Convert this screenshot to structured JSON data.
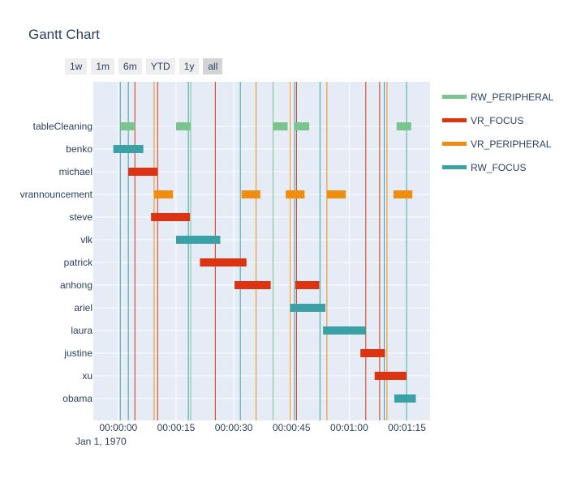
{
  "chart_data": {
    "type": "gantt",
    "title": "Gantt Chart",
    "x_date_label": "Jan 1, 1970",
    "xlim": [
      -6.5,
      81
    ],
    "x_ticks": [
      {
        "value": 0,
        "label": "00:00:00"
      },
      {
        "value": 15,
        "label": "00:00:15"
      },
      {
        "value": 30,
        "label": "00:00:30"
      },
      {
        "value": 45,
        "label": "00:00:45"
      },
      {
        "value": 60,
        "label": "00:01:00"
      },
      {
        "value": 75,
        "label": "00:01:15"
      }
    ],
    "range_buttons": [
      {
        "label": "1w",
        "active": false
      },
      {
        "label": "1m",
        "active": false
      },
      {
        "label": "6m",
        "active": false
      },
      {
        "label": "YTD",
        "active": false
      },
      {
        "label": "1y",
        "active": false
      },
      {
        "label": "all",
        "active": true
      }
    ],
    "categories": [
      "tableCleaning",
      "benko",
      "michael",
      "vrannouncement",
      "steve",
      "vlk",
      "patrick",
      "anhong",
      "ariel",
      "laura",
      "justine",
      "xu",
      "obama"
    ],
    "legend": [
      {
        "name": "RW_PERIPHERAL",
        "color": "#7ac48f"
      },
      {
        "name": "VR_FOCUS",
        "color": "#dd3311"
      },
      {
        "name": "VR_PERIPHERAL",
        "color": "#f08c0e"
      },
      {
        "name": "RW_FOCUS",
        "color": "#3aa1a6"
      }
    ],
    "tasks": [
      {
        "row": "tableCleaning",
        "start": 0.5,
        "end": 4.3,
        "type": "RW_PERIPHERAL"
      },
      {
        "row": "tableCleaning",
        "start": 15,
        "end": 18.8,
        "type": "RW_PERIPHERAL"
      },
      {
        "row": "tableCleaning",
        "start": 40.2,
        "end": 44,
        "type": "RW_PERIPHERAL"
      },
      {
        "row": "tableCleaning",
        "start": 45.8,
        "end": 49.6,
        "type": "RW_PERIPHERAL"
      },
      {
        "row": "tableCleaning",
        "start": 72.3,
        "end": 76.1,
        "type": "RW_PERIPHERAL"
      },
      {
        "row": "benko",
        "start": -1.3,
        "end": 6.5,
        "type": "RW_FOCUS"
      },
      {
        "row": "michael",
        "start": 2.6,
        "end": 10.2,
        "type": "VR_FOCUS"
      },
      {
        "row": "vrannouncement",
        "start": 9.3,
        "end": 14.2,
        "type": "VR_PERIPHERAL"
      },
      {
        "row": "vrannouncement",
        "start": 32,
        "end": 36.9,
        "type": "VR_PERIPHERAL"
      },
      {
        "row": "vrannouncement",
        "start": 43.5,
        "end": 48.4,
        "type": "VR_PERIPHERAL"
      },
      {
        "row": "vrannouncement",
        "start": 54.2,
        "end": 59.1,
        "type": "VR_PERIPHERAL"
      },
      {
        "row": "vrannouncement",
        "start": 71.5,
        "end": 76.4,
        "type": "VR_PERIPHERAL"
      },
      {
        "row": "steve",
        "start": 8.5,
        "end": 18.6,
        "type": "VR_FOCUS"
      },
      {
        "row": "vlk",
        "start": 15,
        "end": 26.5,
        "type": "RW_FOCUS"
      },
      {
        "row": "patrick",
        "start": 21.2,
        "end": 33.3,
        "type": "VR_FOCUS"
      },
      {
        "row": "anhong",
        "start": 30.2,
        "end": 39.6,
        "type": "VR_FOCUS"
      },
      {
        "row": "anhong",
        "start": 46,
        "end": 52.2,
        "type": "VR_FOCUS"
      },
      {
        "row": "ariel",
        "start": 44.6,
        "end": 53.8,
        "type": "RW_FOCUS"
      },
      {
        "row": "laura",
        "start": 53.2,
        "end": 64.3,
        "type": "RW_FOCUS"
      },
      {
        "row": "justine",
        "start": 62.9,
        "end": 69.3,
        "type": "VR_FOCUS"
      },
      {
        "row": "xu",
        "start": 66.6,
        "end": 74.9,
        "type": "VR_FOCUS"
      },
      {
        "row": "obama",
        "start": 71.7,
        "end": 77.3,
        "type": "RW_FOCUS"
      }
    ],
    "vlines": [
      {
        "x": 0.5,
        "type": "RW_FOCUS"
      },
      {
        "x": 2.6,
        "type": "RW_FOCUS"
      },
      {
        "x": 4.3,
        "type": "VR_FOCUS"
      },
      {
        "x": 9.3,
        "type": "VR_PERIPHERAL"
      },
      {
        "x": 10.2,
        "type": "VR_FOCUS"
      },
      {
        "x": 18.2,
        "type": "RW_FOCUS"
      },
      {
        "x": 18.8,
        "type": "RW_PERIPHERAL"
      },
      {
        "x": 25.2,
        "type": "VR_FOCUS"
      },
      {
        "x": 31.7,
        "type": "RW_FOCUS"
      },
      {
        "x": 35.8,
        "type": "VR_PERIPHERAL"
      },
      {
        "x": 40.2,
        "type": "RW_PERIPHERAL"
      },
      {
        "x": 44.7,
        "type": "VR_PERIPHERAL"
      },
      {
        "x": 45.8,
        "type": "RW_FOCUS"
      },
      {
        "x": 46.3,
        "type": "VR_FOCUS"
      },
      {
        "x": 52.4,
        "type": "RW_FOCUS"
      },
      {
        "x": 54.2,
        "type": "VR_PERIPHERAL"
      },
      {
        "x": 64.3,
        "type": "VR_FOCUS"
      },
      {
        "x": 67.9,
        "type": "VR_FOCUS"
      },
      {
        "x": 69.1,
        "type": "RW_FOCUS"
      },
      {
        "x": 69.8,
        "type": "VR_PERIPHERAL"
      },
      {
        "x": 74.9,
        "type": "RW_FOCUS"
      }
    ]
  }
}
